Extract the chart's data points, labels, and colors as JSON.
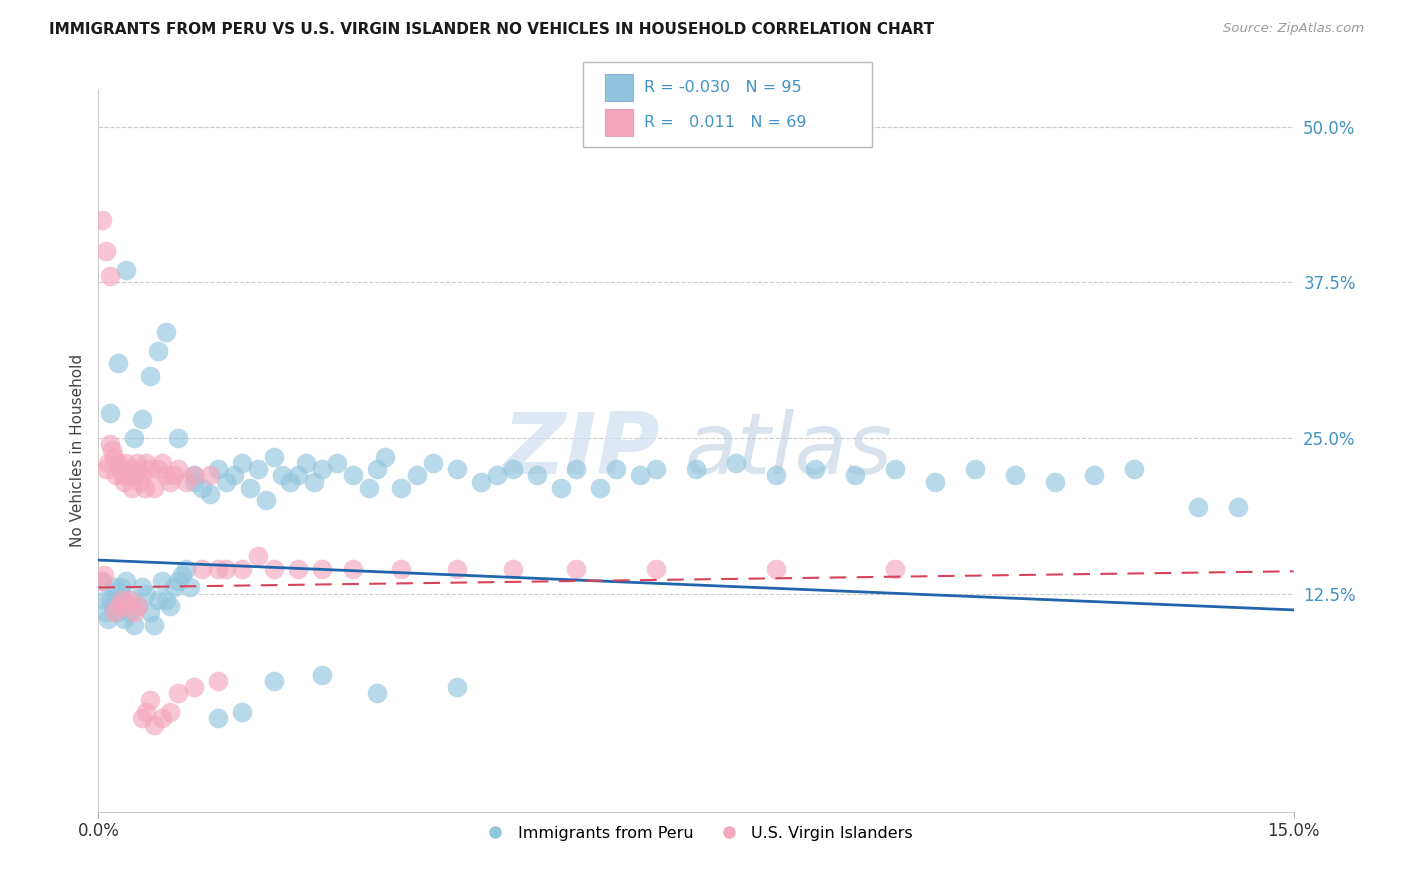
{
  "title": "IMMIGRANTS FROM PERU VS U.S. VIRGIN ISLANDER NO VEHICLES IN HOUSEHOLD CORRELATION CHART",
  "source": "Source: ZipAtlas.com",
  "ylabel": "No Vehicles in Household",
  "xlim": [
    0.0,
    15.0
  ],
  "ylim": [
    -5.0,
    53.0
  ],
  "yticks_right": [
    50.0,
    37.5,
    25.0,
    12.5
  ],
  "xticks": [
    0.0,
    15.0
  ],
  "color_blue": "#92c5de",
  "color_pink": "#f4a6bc",
  "color_blue_line": "#2166ac",
  "color_pink_line": "#d6425a",
  "color_title": "#1a1a1a",
  "color_source": "#999999",
  "color_ylabel": "#444444",
  "color_tick_blue": "#4393c3",
  "watermark_zip": "ZIP",
  "watermark_atlas": "atlas",
  "blue_trend_start": 15.2,
  "blue_trend_end": 11.2,
  "pink_trend_start": 13.0,
  "pink_trend_end": 14.3,
  "blue_scatter_x": [
    0.05,
    0.08,
    0.1,
    0.12,
    0.15,
    0.18,
    0.2,
    0.22,
    0.25,
    0.28,
    0.3,
    0.32,
    0.35,
    0.38,
    0.4,
    0.45,
    0.5,
    0.55,
    0.6,
    0.65,
    0.7,
    0.75,
    0.8,
    0.85,
    0.9,
    0.95,
    1.0,
    1.05,
    1.1,
    1.15,
    1.2,
    1.3,
    1.4,
    1.5,
    1.6,
    1.7,
    1.8,
    1.9,
    2.0,
    2.1,
    2.2,
    2.3,
    2.4,
    2.5,
    2.6,
    2.7,
    2.8,
    3.0,
    3.2,
    3.4,
    3.5,
    3.6,
    3.8,
    4.0,
    4.2,
    4.5,
    4.8,
    5.0,
    5.2,
    5.5,
    5.8,
    6.0,
    6.3,
    6.5,
    6.8,
    7.0,
    7.5,
    8.0,
    8.5,
    9.0,
    9.5,
    10.0,
    10.5,
    11.0,
    11.5,
    12.0,
    12.5,
    13.0,
    13.8,
    14.3,
    0.15,
    0.25,
    0.35,
    0.45,
    0.55,
    0.65,
    0.75,
    0.85,
    1.0,
    1.2,
    1.5,
    1.8,
    2.2,
    2.8,
    3.5,
    4.5
  ],
  "blue_scatter_y": [
    13.5,
    12.0,
    11.0,
    10.5,
    12.0,
    11.5,
    13.0,
    12.5,
    11.0,
    13.0,
    12.0,
    10.5,
    13.5,
    11.0,
    12.0,
    10.0,
    11.5,
    13.0,
    12.5,
    11.0,
    10.0,
    12.0,
    13.5,
    12.0,
    11.5,
    13.0,
    13.5,
    14.0,
    14.5,
    13.0,
    22.0,
    21.0,
    20.5,
    22.5,
    21.5,
    22.0,
    23.0,
    21.0,
    22.5,
    20.0,
    23.5,
    22.0,
    21.5,
    22.0,
    23.0,
    21.5,
    22.5,
    23.0,
    22.0,
    21.0,
    22.5,
    23.5,
    21.0,
    22.0,
    23.0,
    22.5,
    21.5,
    22.0,
    22.5,
    22.0,
    21.0,
    22.5,
    21.0,
    22.5,
    22.0,
    22.5,
    22.5,
    23.0,
    22.0,
    22.5,
    22.0,
    22.5,
    21.5,
    22.5,
    22.0,
    21.5,
    22.0,
    22.5,
    19.5,
    19.5,
    27.0,
    31.0,
    38.5,
    25.0,
    26.5,
    30.0,
    32.0,
    33.5,
    25.0,
    21.5,
    2.5,
    3.0,
    5.5,
    6.0,
    4.5,
    5.0
  ],
  "pink_scatter_x": [
    0.05,
    0.07,
    0.1,
    0.12,
    0.15,
    0.17,
    0.2,
    0.22,
    0.25,
    0.27,
    0.3,
    0.32,
    0.35,
    0.38,
    0.4,
    0.42,
    0.45,
    0.48,
    0.5,
    0.52,
    0.55,
    0.58,
    0.6,
    0.65,
    0.7,
    0.75,
    0.8,
    0.85,
    0.9,
    0.95,
    1.0,
    1.1,
    1.2,
    1.3,
    1.4,
    1.5,
    1.6,
    1.8,
    2.0,
    2.2,
    2.5,
    2.8,
    3.2,
    3.8,
    4.5,
    5.2,
    6.0,
    7.0,
    8.5,
    10.0,
    0.05,
    0.1,
    0.15,
    0.2,
    0.25,
    0.3,
    0.35,
    0.4,
    0.45,
    0.5,
    0.55,
    0.6,
    0.65,
    0.7,
    0.8,
    0.9,
    1.0,
    1.2,
    1.5
  ],
  "pink_scatter_y": [
    13.5,
    14.0,
    22.5,
    23.0,
    24.5,
    24.0,
    23.5,
    22.0,
    23.0,
    22.5,
    22.0,
    21.5,
    23.0,
    22.0,
    22.5,
    21.0,
    22.0,
    23.0,
    22.5,
    21.5,
    22.0,
    21.0,
    23.0,
    22.5,
    21.0,
    22.5,
    23.0,
    22.0,
    21.5,
    22.0,
    22.5,
    21.5,
    22.0,
    14.5,
    22.0,
    14.5,
    14.5,
    14.5,
    15.5,
    14.5,
    14.5,
    14.5,
    14.5,
    14.5,
    14.5,
    14.5,
    14.5,
    14.5,
    14.5,
    14.5,
    42.5,
    40.0,
    38.0,
    11.0,
    11.5,
    12.0,
    11.5,
    12.0,
    11.0,
    11.5,
    2.5,
    3.0,
    4.0,
    2.0,
    2.5,
    3.0,
    4.5,
    5.0,
    5.5
  ]
}
